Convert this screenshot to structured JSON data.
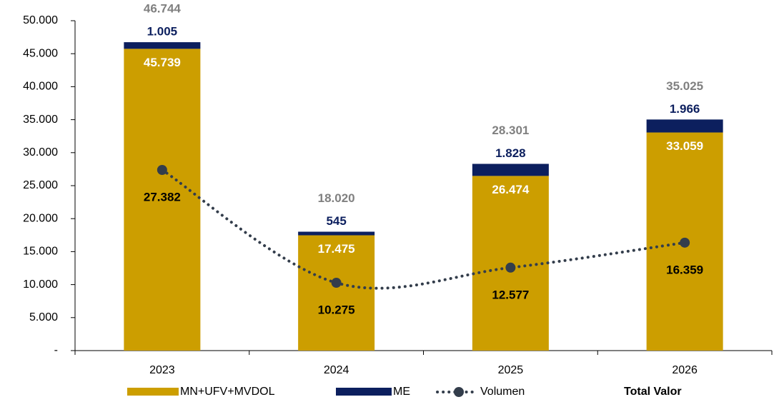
{
  "chart_data": {
    "type": "bar",
    "stacked": true,
    "categories": [
      "2023",
      "2024",
      "2025",
      "2026"
    ],
    "series": [
      {
        "name": "MN+UFV+MVDOL",
        "type": "bar",
        "color": "#cc9e00",
        "label_color": "#ffffff",
        "values": [
          45739,
          17475,
          26474,
          33059
        ],
        "value_labels": [
          "45.739",
          "17.475",
          "26.474",
          "33.059"
        ]
      },
      {
        "name": "ME",
        "type": "bar",
        "color": "#0c1f5e",
        "label_color": "#0c1f5e",
        "values": [
          1005,
          545,
          1828,
          1966
        ],
        "value_labels": [
          "1.005",
          "545",
          "1.828",
          "1.966"
        ]
      },
      {
        "name": "Volumen",
        "type": "line",
        "color": "#333d4b",
        "label_color": "#000000",
        "values": [
          27382,
          10275,
          12577,
          16359
        ],
        "value_labels": [
          "27.382",
          "10.275",
          "12.577",
          "16.359"
        ]
      },
      {
        "name": "Total Valor",
        "type": "total",
        "color": "#808080",
        "label_color": "#808080",
        "values": [
          46744,
          18020,
          28301,
          35025
        ],
        "value_labels": [
          "46.744",
          "18.020",
          "28.301",
          "35.025"
        ]
      }
    ],
    "ylim": [
      0,
      50000
    ],
    "yticks": [
      {
        "value": 0,
        "label": "-"
      },
      {
        "value": 5000,
        "label": "5.000"
      },
      {
        "value": 10000,
        "label": "10.000"
      },
      {
        "value": 15000,
        "label": "15.000"
      },
      {
        "value": 20000,
        "label": "20.000"
      },
      {
        "value": 25000,
        "label": "25.000"
      },
      {
        "value": 30000,
        "label": "30.000"
      },
      {
        "value": 35000,
        "label": "35.000"
      },
      {
        "value": 40000,
        "label": "40.000"
      },
      {
        "value": 45000,
        "label": "45.000"
      },
      {
        "value": 50000,
        "label": "50.000"
      }
    ],
    "legend": "bottom"
  }
}
